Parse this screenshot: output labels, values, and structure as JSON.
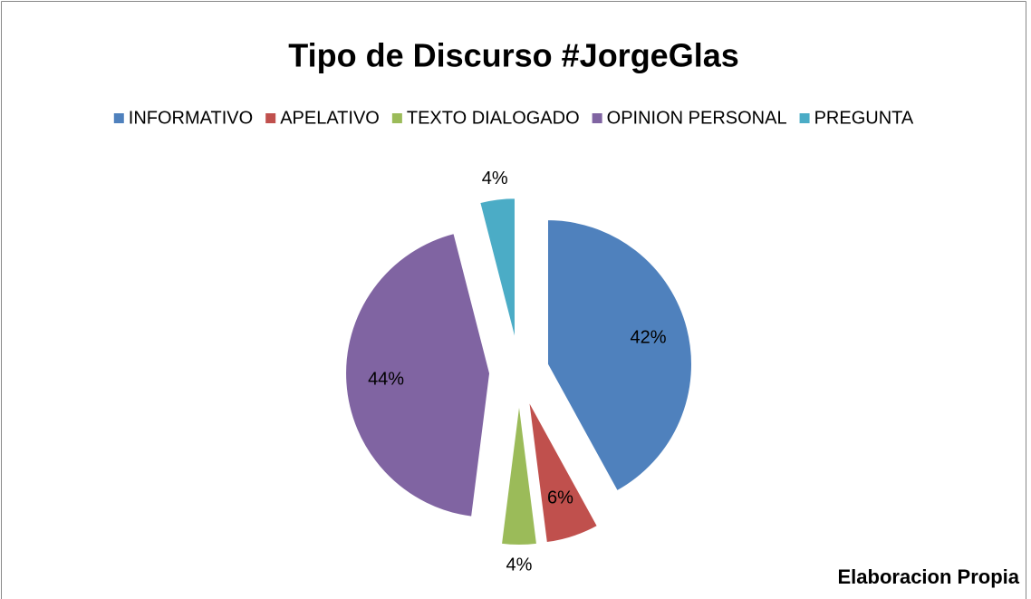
{
  "chart_data": {
    "type": "pie",
    "title": "Tipo de Discurso #JorgeGlas",
    "categories": [
      "INFORMATIVO",
      "APELATIVO",
      "TEXTO DIALOGADO",
      "OPINION PERSONAL",
      "PREGUNTA"
    ],
    "values": [
      42,
      6,
      4,
      44,
      4
    ],
    "value_labels": [
      "42%",
      "6%",
      "4%",
      "44%",
      "4%"
    ],
    "colors": [
      "#4f81bd",
      "#c0504d",
      "#9bbb59",
      "#8064a2",
      "#4bacc6"
    ],
    "legend": "top",
    "annotation": "Elaboracion Propia"
  }
}
